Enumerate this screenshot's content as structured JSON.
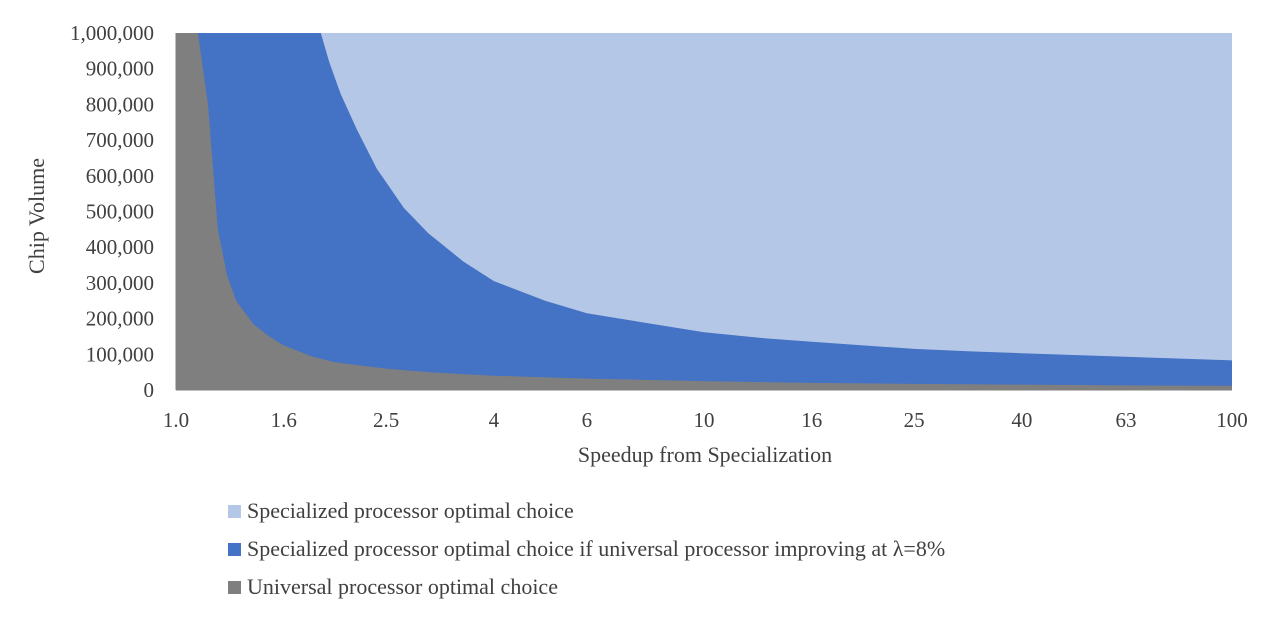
{
  "chart_data": {
    "type": "area",
    "xlabel": "Speedup from Specialization",
    "ylabel": "Chip Volume",
    "x_scale": "log",
    "x_ticks": [
      "1.0",
      "1.6",
      "2.5",
      "4",
      "6",
      "10",
      "16",
      "25",
      "40",
      "63",
      "100"
    ],
    "xlim": [
      1,
      100
    ],
    "y_ticks": [
      "0",
      "100,000",
      "200,000",
      "300,000",
      "400,000",
      "500,000",
      "600,000",
      "700,000",
      "800,000",
      "900,000",
      "1,000,000"
    ],
    "ylim": [
      0,
      1000000
    ],
    "series": [
      {
        "name": "Specialized processor optimal choice",
        "color": "#b4c7e7",
        "note_fill": "above",
        "x": [
          1,
          100
        ],
        "y": [
          1000000,
          1000000
        ]
      },
      {
        "name": "Specialized processor optimal choice if universal processor improving at λ=8%",
        "color": "#4472c4",
        "x": [
          1.0,
          1.1,
          1.3,
          1.5,
          1.7,
          1.88,
          1.95,
          2.05,
          2.2,
          2.4,
          2.7,
          3.0,
          3.5,
          4.0,
          5.0,
          6.0,
          8.0,
          10,
          13,
          16,
          20,
          25,
          32,
          40,
          50,
          63,
          80,
          100
        ],
        "y": [
          1000000,
          1000000,
          1000000,
          1000000,
          1000000,
          1000000,
          920000,
          830000,
          730000,
          620000,
          510000,
          440000,
          360000,
          305000,
          250000,
          215000,
          185000,
          162000,
          145000,
          135000,
          125000,
          115000,
          108000,
          103000,
          98000,
          93000,
          88000,
          83000
        ]
      },
      {
        "name": "Universal processor optimal choice",
        "color": "#7f7f7f",
        "x": [
          1.0,
          1.05,
          1.1,
          1.15,
          1.2,
          1.25,
          1.3,
          1.4,
          1.5,
          1.6,
          1.8,
          2.0,
          2.5,
          3.0,
          4.0,
          6.0,
          10,
          16,
          25,
          40,
          63,
          100
        ],
        "y": [
          1000000,
          1000000,
          1000000,
          800000,
          450000,
          320000,
          250000,
          185000,
          150000,
          125000,
          95000,
          78000,
          60000,
          50000,
          40000,
          32000,
          25000,
          20000,
          17000,
          15000,
          13000,
          12000
        ]
      }
    ],
    "legend": {
      "position": "bottom",
      "entries": [
        "Specialized processor optimal choice",
        "Specialized processor optimal choice if universal processor improving at λ=8%",
        "Universal processor optimal choice"
      ]
    },
    "grid": false
  }
}
